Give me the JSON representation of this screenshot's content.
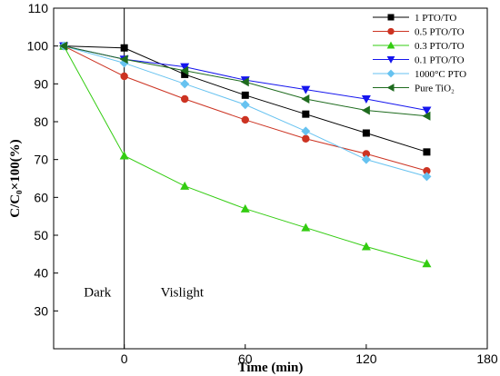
{
  "chart_data": {
    "type": "line",
    "title": "",
    "xlabel": "Time (min)",
    "ylabel": "C/C₀×100(%)",
    "xlim": [
      -35,
      180
    ],
    "ylim": [
      20,
      110
    ],
    "xticks": [
      0,
      60,
      120,
      180
    ],
    "yticks": [
      30,
      40,
      50,
      60,
      70,
      80,
      90,
      100,
      110
    ],
    "grid": false,
    "legend_position": "top-right",
    "x": [
      -30,
      0,
      30,
      60,
      90,
      120,
      150
    ],
    "annotations": [
      {
        "text": "Dark",
        "x": -20,
        "y": 35
      },
      {
        "text": "Vislight",
        "x": 18,
        "y": 35
      }
    ],
    "divider_x": 0,
    "series": [
      {
        "name": "1 PTO/TO",
        "marker": "square",
        "color": "#000000",
        "values": [
          100,
          99.5,
          92.5,
          87,
          82,
          77,
          72
        ]
      },
      {
        "name": "0.5 PTO/TO",
        "marker": "circle",
        "color": "#cc3322",
        "values": [
          100,
          92,
          86,
          80.5,
          75.5,
          71.5,
          67
        ]
      },
      {
        "name": "0.3 PTO/TO",
        "marker": "triangle-up",
        "color": "#33cc11",
        "values": [
          100,
          71,
          63,
          57,
          52,
          47,
          42.5
        ]
      },
      {
        "name": "0.1 PTO/TO",
        "marker": "triangle-down",
        "color": "#1515ee",
        "values": [
          100,
          96.5,
          94.5,
          91,
          88.5,
          86,
          83
        ]
      },
      {
        "name": "1000°C PTO",
        "marker": "diamond",
        "color": "#66c2f0",
        "values": [
          100,
          95.5,
          90,
          84.5,
          77.5,
          70,
          65.5
        ]
      },
      {
        "name": "Pure TiO₂",
        "marker": "triangle-left",
        "color": "#1e6b1e",
        "values": [
          100,
          96.5,
          93.5,
          90.5,
          86,
          83,
          81.5
        ]
      }
    ]
  }
}
